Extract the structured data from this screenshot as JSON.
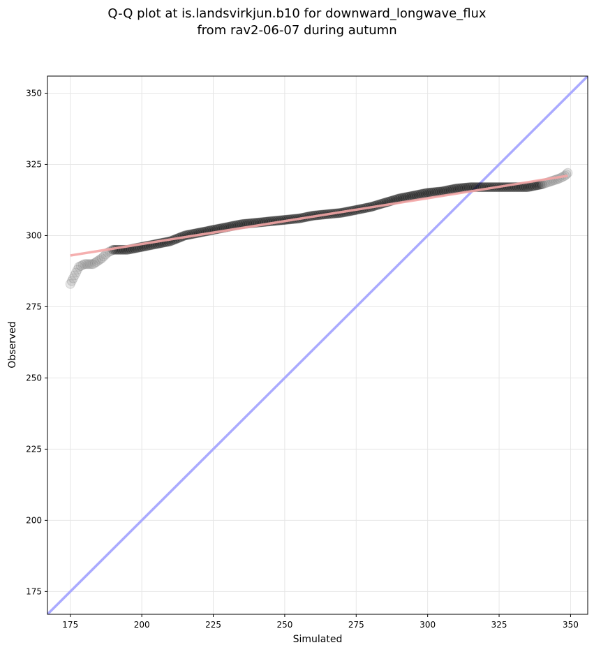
{
  "chart_data": {
    "type": "scatter",
    "title_line1": "Q-Q plot at is.landsvirkjun.b10 for downward_longwave_flux",
    "title_line2": "from rav2-06-07 during autumn",
    "xlabel": "Simulated",
    "ylabel": "Observed",
    "xlim": [
      167,
      356
    ],
    "ylim": [
      167,
      356
    ],
    "xticks": [
      175,
      200,
      225,
      250,
      275,
      300,
      325,
      350
    ],
    "yticks": [
      175,
      200,
      225,
      250,
      275,
      300,
      325,
      350
    ],
    "grid": true,
    "identity_line": {
      "from": [
        167,
        167
      ],
      "to": [
        356,
        356
      ],
      "color": "#aaaaff"
    },
    "fit_line": {
      "from": [
        175,
        293
      ],
      "to": [
        349,
        321
      ],
      "color": "#f4a6a6"
    },
    "quantile_anchors": [
      [
        175,
        283
      ],
      [
        176,
        285
      ],
      [
        177,
        287
      ],
      [
        178,
        289
      ],
      [
        180,
        290
      ],
      [
        183,
        290
      ],
      [
        186,
        292
      ],
      [
        188,
        294
      ],
      [
        190,
        295
      ],
      [
        195,
        295
      ],
      [
        200,
        296
      ],
      [
        205,
        297
      ],
      [
        210,
        298
      ],
      [
        215,
        300
      ],
      [
        220,
        301
      ],
      [
        225,
        302
      ],
      [
        230,
        303
      ],
      [
        235,
        304
      ],
      [
        240,
        304.5
      ],
      [
        245,
        305
      ],
      [
        250,
        305.5
      ],
      [
        255,
        306
      ],
      [
        260,
        307
      ],
      [
        265,
        307.5
      ],
      [
        270,
        308
      ],
      [
        275,
        309
      ],
      [
        280,
        310
      ],
      [
        285,
        311.5
      ],
      [
        290,
        313
      ],
      [
        295,
        314
      ],
      [
        300,
        315
      ],
      [
        305,
        315.5
      ],
      [
        310,
        316.5
      ],
      [
        315,
        317
      ],
      [
        320,
        317
      ],
      [
        325,
        317
      ],
      [
        330,
        317
      ],
      [
        335,
        317
      ],
      [
        340,
        318
      ],
      [
        343,
        319
      ],
      [
        346,
        320
      ],
      [
        348,
        321
      ],
      [
        349,
        322
      ]
    ]
  }
}
